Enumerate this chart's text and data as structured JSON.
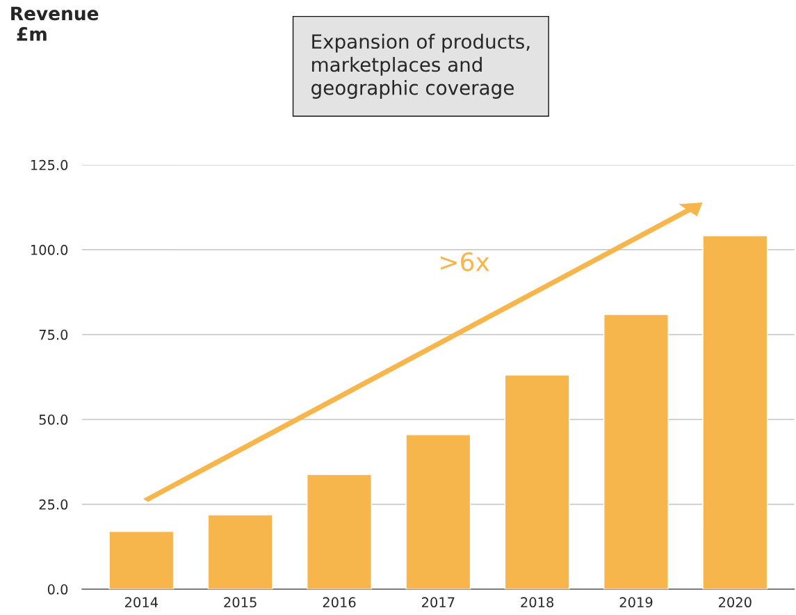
{
  "chart_data": {
    "type": "bar",
    "categories": [
      "2014",
      "2015",
      "2016",
      "2017",
      "2018",
      "2019",
      "2020"
    ],
    "values": [
      17.0,
      21.9,
      33.8,
      45.5,
      63.1,
      80.9,
      104.1
    ],
    "color": "#f6b64c",
    "ylim": [
      0,
      125
    ],
    "yticks": [
      {
        "value": 0,
        "label": "0.0"
      },
      {
        "value": 25,
        "label": "25.0"
      },
      {
        "value": 50,
        "label": "50.0"
      },
      {
        "value": 75,
        "label": "75.0"
      },
      {
        "value": 100,
        "label": "100.0"
      },
      {
        "value": 125,
        "label": "125.0"
      }
    ],
    "grid": "y",
    "annotations": [
      "Expansion of products,\nmarketplaces and\ngeographic coverage",
      ">6x",
      "Revenue\n £m"
    ]
  }
}
